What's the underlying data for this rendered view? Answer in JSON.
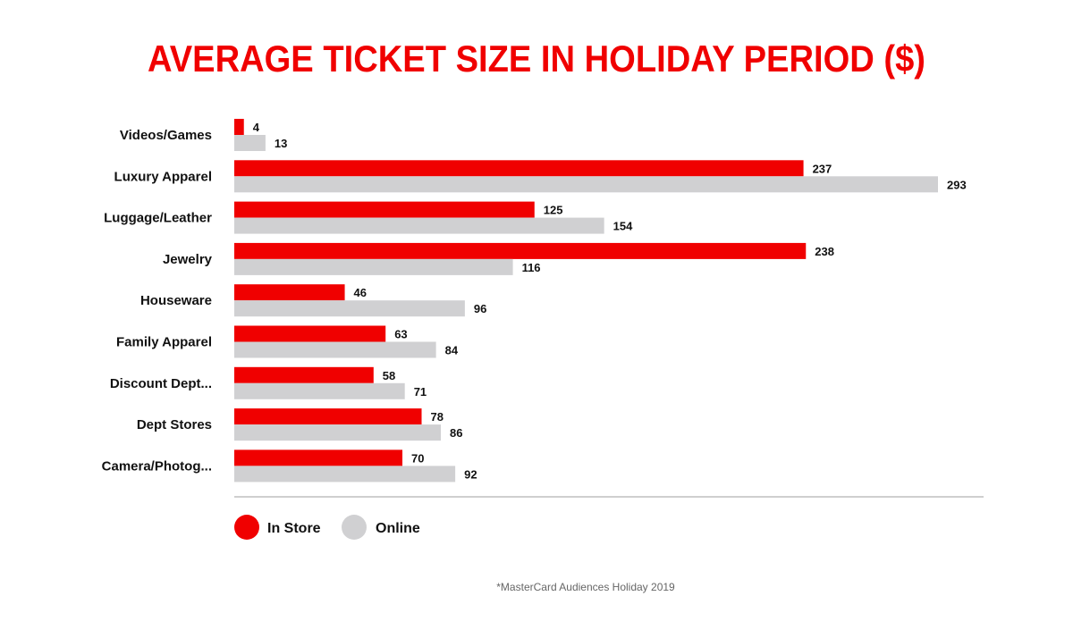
{
  "chart_data": {
    "type": "bar",
    "orientation": "horizontal",
    "title": "AVERAGE TICKET SIZE IN HOLIDAY PERIOD ($)",
    "categories": [
      "Videos/Games",
      "Luxury Apparel",
      "Luggage/Leather",
      "Jewelry",
      "Houseware",
      "Family Apparel",
      "Discount Dept...",
      "Dept Stores",
      "Camera/Photog..."
    ],
    "series": [
      {
        "name": "In Store",
        "color": "#f00000",
        "values": [
          4,
          237,
          125,
          238,
          46,
          63,
          58,
          78,
          70
        ]
      },
      {
        "name": "Online",
        "color": "#d0d0d2",
        "values": [
          13,
          293,
          154,
          116,
          96,
          84,
          71,
          86,
          92
        ]
      }
    ],
    "xlim": [
      0,
      311
    ],
    "grid": false,
    "data_labels": true,
    "legend_position": "bottom-left",
    "footnote": "*MasterCard Audiences Holiday 2019"
  }
}
